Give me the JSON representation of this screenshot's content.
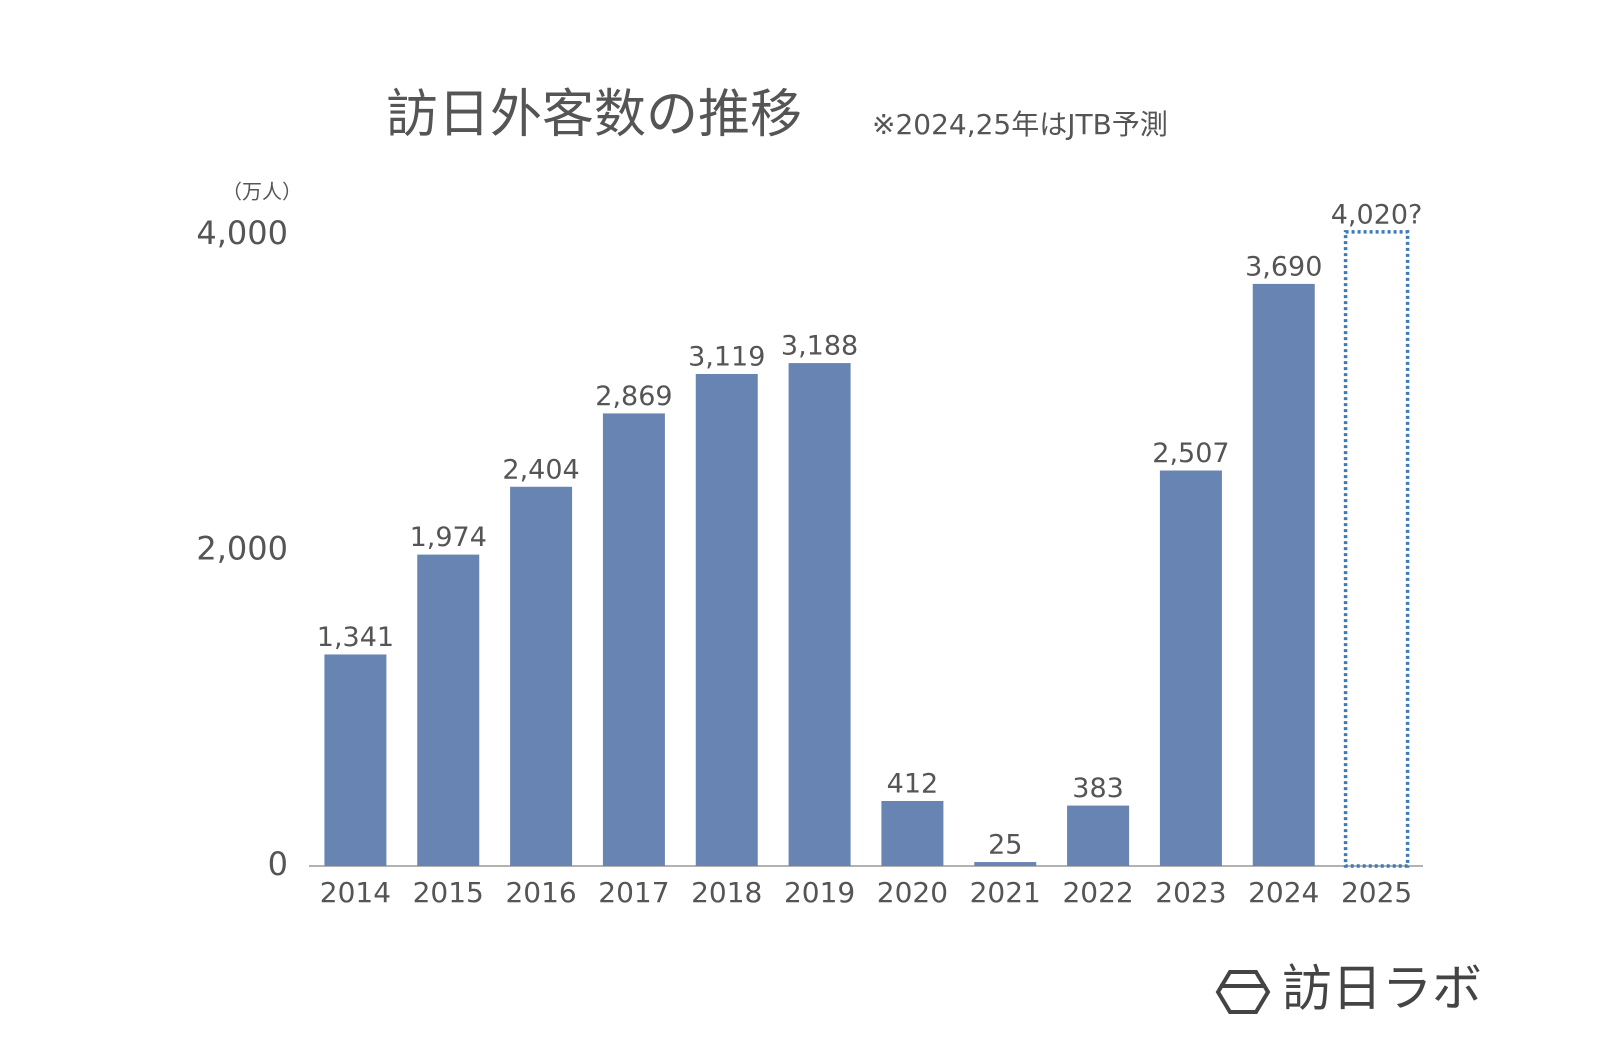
{
  "chart_data": {
    "type": "bar",
    "title": "訪日外客数の推移",
    "subtitle": "※2024,25年はJTB予測",
    "y_unit": "（万人）",
    "brand": "訪日ラボ",
    "categories": [
      "2014",
      "2015",
      "2016",
      "2017",
      "2018",
      "2019",
      "2020",
      "2021",
      "2022",
      "2023",
      "2024",
      "2025"
    ],
    "values": [
      1341,
      1974,
      2404,
      2869,
      3119,
      3188,
      412,
      25,
      383,
      2507,
      3690,
      4020
    ],
    "value_labels": [
      "1,341",
      "1,974",
      "2,404",
      "2,869",
      "3,119",
      "3,188",
      "412",
      "25",
      "383",
      "2,507",
      "3,690",
      "4,020?"
    ],
    "bar_style": [
      "solid",
      "solid",
      "solid",
      "solid",
      "solid",
      "solid",
      "solid",
      "solid",
      "solid",
      "solid",
      "solid",
      "dotted"
    ],
    "color": "#6884b3",
    "outline_color": "#3d7ab8",
    "ylim": [
      0,
      4000
    ],
    "yticks": [
      0,
      {
        "value": 2000,
        "label": "2,000"
      },
      {
        "value": 4000,
        "label": "4,000"
      }
    ],
    "grid": false
  }
}
